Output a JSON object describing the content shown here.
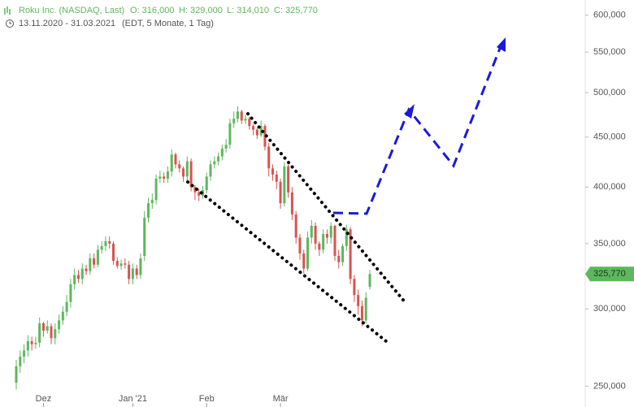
{
  "header": {
    "title": "Roku Inc. (NASDAQ, Last)",
    "open": "O: 316,000",
    "high": "H: 329,000",
    "low": "L: 314,010",
    "close": "C: 325,770",
    "range": "13.11.2020 - 31.03.2021",
    "info": "(EDT, 5 Monate, 1 Tag)"
  },
  "chart_data": {
    "type": "candlestick",
    "log_scale": true,
    "grid": false,
    "up_color": "#5cb85c",
    "down_color": "#d9534f",
    "categories": [
      null,
      null,
      null,
      null,
      null,
      null,
      null,
      "Dez",
      null,
      null,
      null,
      null,
      null,
      null,
      null,
      null,
      null,
      null,
      null,
      null,
      null,
      null,
      null,
      null,
      null,
      null,
      null,
      null,
      null,
      null,
      "Jan '21",
      null,
      null,
      null,
      null,
      null,
      null,
      null,
      null,
      null,
      null,
      null,
      null,
      null,
      null,
      null,
      null,
      null,
      null,
      "Feb",
      null,
      null,
      null,
      null,
      null,
      null,
      null,
      null,
      null,
      null,
      null,
      null,
      null,
      null,
      null,
      null,
      null,
      null,
      "Mär",
      null,
      null,
      null,
      null,
      null,
      null,
      null,
      null,
      null,
      null,
      null,
      null,
      null,
      null,
      null,
      null,
      null,
      null,
      null,
      null,
      null,
      null,
      null
    ],
    "open": [
      252,
      262,
      268,
      272,
      278,
      276,
      277,
      290,
      285,
      288,
      280,
      286,
      292,
      298,
      305,
      318,
      325,
      322,
      330,
      328,
      338,
      333,
      345,
      348,
      352,
      350,
      336,
      332,
      334,
      333,
      322,
      330,
      325,
      340,
      372,
      385,
      388,
      408,
      410,
      408,
      415,
      432,
      422,
      418,
      410,
      425,
      400,
      395,
      392,
      397,
      410,
      422,
      425,
      430,
      438,
      442,
      465,
      470,
      478,
      468,
      470,
      462,
      458,
      452,
      462,
      440,
      418,
      412,
      405,
      385,
      420,
      395,
      375,
      355,
      342,
      330,
      355,
      365,
      350,
      345,
      358,
      355,
      365,
      340,
      335,
      348,
      362,
      322,
      310,
      302,
      292,
      316
    ],
    "high": [
      266,
      272,
      276,
      282,
      281,
      281,
      294,
      291,
      292,
      290,
      290,
      296,
      302,
      310,
      322,
      330,
      329,
      334,
      333,
      342,
      342,
      349,
      352,
      356,
      356,
      352,
      339,
      337,
      338,
      336,
      334,
      333,
      342,
      378,
      390,
      394,
      412,
      416,
      414,
      420,
      437,
      434,
      426,
      420,
      430,
      428,
      402,
      398,
      401,
      414,
      426,
      430,
      434,
      442,
      448,
      470,
      478,
      484,
      480,
      474,
      472,
      464,
      460,
      468,
      464,
      444,
      422,
      416,
      408,
      424,
      422,
      400,
      378,
      358,
      345,
      360,
      370,
      368,
      352,
      362,
      362,
      368,
      366,
      345,
      350,
      366,
      364,
      325,
      314,
      306,
      312,
      329
    ],
    "low": [
      248,
      258,
      264,
      268,
      272,
      273,
      274,
      281,
      283,
      276,
      276,
      283,
      289,
      295,
      301,
      314,
      319,
      318,
      325,
      325,
      330,
      331,
      342,
      344,
      346,
      333,
      330,
      329,
      330,
      318,
      318,
      322,
      322,
      336,
      368,
      380,
      384,
      404,
      404,
      404,
      410,
      418,
      414,
      405,
      406,
      396,
      388,
      387,
      389,
      394,
      406,
      418,
      421,
      426,
      434,
      438,
      460,
      466,
      464,
      464,
      458,
      452,
      448,
      450,
      436,
      410,
      406,
      398,
      380,
      382,
      390,
      370,
      350,
      337,
      326,
      328,
      350,
      345,
      340,
      342,
      350,
      350,
      336,
      330,
      332,
      344,
      318,
      305,
      296,
      288,
      290,
      314.01
    ],
    "close": [
      262,
      268,
      272,
      278,
      276,
      277,
      290,
      285,
      288,
      280,
      286,
      292,
      298,
      305,
      318,
      325,
      322,
      330,
      328,
      338,
      333,
      345,
      348,
      352,
      350,
      336,
      332,
      334,
      333,
      322,
      330,
      325,
      338,
      372,
      385,
      388,
      408,
      410,
      408,
      415,
      432,
      422,
      418,
      410,
      425,
      400,
      395,
      392,
      397,
      410,
      422,
      425,
      430,
      438,
      442,
      465,
      470,
      478,
      468,
      470,
      462,
      458,
      452,
      462,
      440,
      418,
      412,
      405,
      385,
      420,
      395,
      375,
      355,
      342,
      330,
      355,
      365,
      350,
      345,
      358,
      355,
      365,
      340,
      335,
      348,
      362,
      322,
      310,
      302,
      292,
      308,
      325.77
    ],
    "ylim": [
      238,
      622
    ],
    "yticks": [
      {
        "value": 250,
        "label": "250,000"
      },
      {
        "value": 300,
        "label": "300,000"
      },
      {
        "value": 350,
        "label": "350,000"
      },
      {
        "value": 400,
        "label": "400,000"
      },
      {
        "value": 450,
        "label": "450,000"
      },
      {
        "value": 500,
        "label": "500,000"
      },
      {
        "value": 550,
        "label": "550,000"
      },
      {
        "value": 600,
        "label": "600,000"
      }
    ],
    "last_price": {
      "value": 325.77,
      "label": "325,770",
      "color": "#5cb85c"
    }
  }
}
